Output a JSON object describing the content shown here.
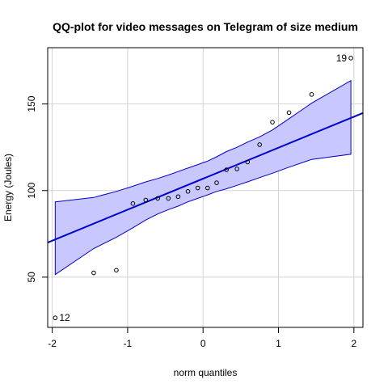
{
  "chart_data": {
    "type": "scatter",
    "title": "QQ-plot for video messages on Telegram of size medium",
    "xlabel": "norm quantiles",
    "ylabel": "Energy (Joules)",
    "xlim": [
      -2.06,
      2.12
    ],
    "ylim": [
      21.0,
      182.5
    ],
    "x_ticks": [
      -2,
      -1,
      0,
      1,
      2
    ],
    "y_ticks": [
      50,
      100,
      150
    ],
    "grid": true,
    "colors": {
      "line": "#0000cc",
      "band_fill": "#c8c8ff",
      "band_stroke": "#0000cc",
      "points": "#000000",
      "grid": "#d3d3d3",
      "frame": "#000000"
    },
    "points": [
      {
        "x": -1.96,
        "y": 26.5
      },
      {
        "x": -1.45,
        "y": 52.5
      },
      {
        "x": -1.15,
        "y": 54.0
      },
      {
        "x": -0.93,
        "y": 92.5
      },
      {
        "x": -0.76,
        "y": 94.5
      },
      {
        "x": -0.6,
        "y": 95.5
      },
      {
        "x": -0.46,
        "y": 95.5
      },
      {
        "x": -0.33,
        "y": 96.5
      },
      {
        "x": -0.2,
        "y": 99.5
      },
      {
        "x": -0.07,
        "y": 101.5
      },
      {
        "x": 0.06,
        "y": 101.5
      },
      {
        "x": 0.18,
        "y": 104.5
      },
      {
        "x": 0.31,
        "y": 112.0
      },
      {
        "x": 0.45,
        "y": 112.5
      },
      {
        "x": 0.59,
        "y": 116.5
      },
      {
        "x": 0.75,
        "y": 126.5
      },
      {
        "x": 0.92,
        "y": 139.5
      },
      {
        "x": 1.14,
        "y": 145.0
      },
      {
        "x": 1.44,
        "y": 155.5
      },
      {
        "x": 1.96,
        "y": 176.5
      }
    ],
    "point_labels": [
      {
        "label": "12",
        "x": -1.96,
        "y": 26.5,
        "side": "right"
      },
      {
        "label": "19",
        "x": 1.96,
        "y": 176.5,
        "side": "left"
      }
    ],
    "reference_line": {
      "x": [
        -2.06,
        2.12
      ],
      "y": [
        70.0,
        144.8
      ]
    },
    "confidence_band": {
      "x": [
        -1.96,
        -1.45,
        -1.15,
        -0.93,
        -0.76,
        -0.6,
        -0.46,
        -0.33,
        -0.2,
        -0.07,
        0.06,
        0.18,
        0.31,
        0.45,
        0.59,
        0.75,
        0.92,
        1.14,
        1.44,
        1.96
      ],
      "lower": [
        51.5,
        66.5,
        73.0,
        78.5,
        83.0,
        86.5,
        89.0,
        91.0,
        93.5,
        95.5,
        97.5,
        99.5,
        101.0,
        103.0,
        105.0,
        107.5,
        110.0,
        113.5,
        118.0,
        121.0
      ],
      "upper": [
        93.5,
        96.0,
        99.5,
        102.5,
        105.0,
        107.0,
        109.0,
        111.0,
        113.0,
        115.0,
        117.0,
        119.5,
        122.5,
        125.0,
        128.0,
        131.0,
        135.0,
        141.5,
        150.5,
        163.5
      ]
    }
  }
}
